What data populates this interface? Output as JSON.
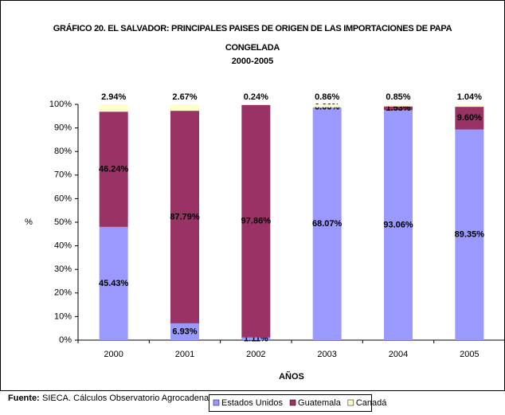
{
  "chart_data": {
    "type": "bar",
    "stacking": "percent",
    "title": "GRÁFICO 20. EL SALVADOR: PRINCIPALES PAISES DE ORIGEN DE LAS IMPORTACIONES DE PAPA CONGELADA",
    "subtitle": "2000-2005",
    "x_label": "AÑOS",
    "y_label": "%",
    "source_label": "Fuente:",
    "source": "SIECA. Cálculos Observatorio Agrocadenas",
    "categories": [
      "2000",
      "2001",
      "2002",
      "2003",
      "2004",
      "2005"
    ],
    "series": [
      {
        "name": "Estados Unidos",
        "color": "#9999ff",
        "values": [
          45.43,
          6.93,
          1.11,
          68.07,
          93.06,
          89.35
        ],
        "value_labels": [
          "45.43%",
          "6.93%",
          "1.11%",
          "68.07%",
          "93.06%",
          "89.35%"
        ]
      },
      {
        "name": "Guatemala",
        "color": "#993366",
        "values": [
          46.24,
          87.79,
          97.86,
          0.0,
          1.53,
          9.6
        ],
        "value_labels": [
          "46.24%",
          "87.79%",
          "97.86%",
          "0.00%",
          "1.53%",
          "9.60%"
        ]
      },
      {
        "name": "Canadá",
        "color": "#ffffcc",
        "values": [
          2.94,
          2.67,
          0.24,
          0.86,
          0.85,
          1.04
        ],
        "value_labels": [
          "2.94%",
          "2.67%",
          "0.24%",
          "0.86%",
          "0.85%",
          "1.04%"
        ]
      }
    ],
    "ylim": [
      0,
      100
    ],
    "yticks": [
      {
        "value": 0,
        "label": "0%"
      },
      {
        "value": 10,
        "label": "10%"
      },
      {
        "value": 20,
        "label": "20%"
      },
      {
        "value": 30,
        "label": "30%"
      },
      {
        "value": 40,
        "label": "40%"
      },
      {
        "value": 50,
        "label": "50%"
      },
      {
        "value": 60,
        "label": "60%"
      },
      {
        "value": 70,
        "label": "70%"
      },
      {
        "value": 80,
        "label": "80%"
      },
      {
        "value": 90,
        "label": "90%"
      },
      {
        "value": 100,
        "label": "100%"
      }
    ],
    "legend": "bottom"
  }
}
